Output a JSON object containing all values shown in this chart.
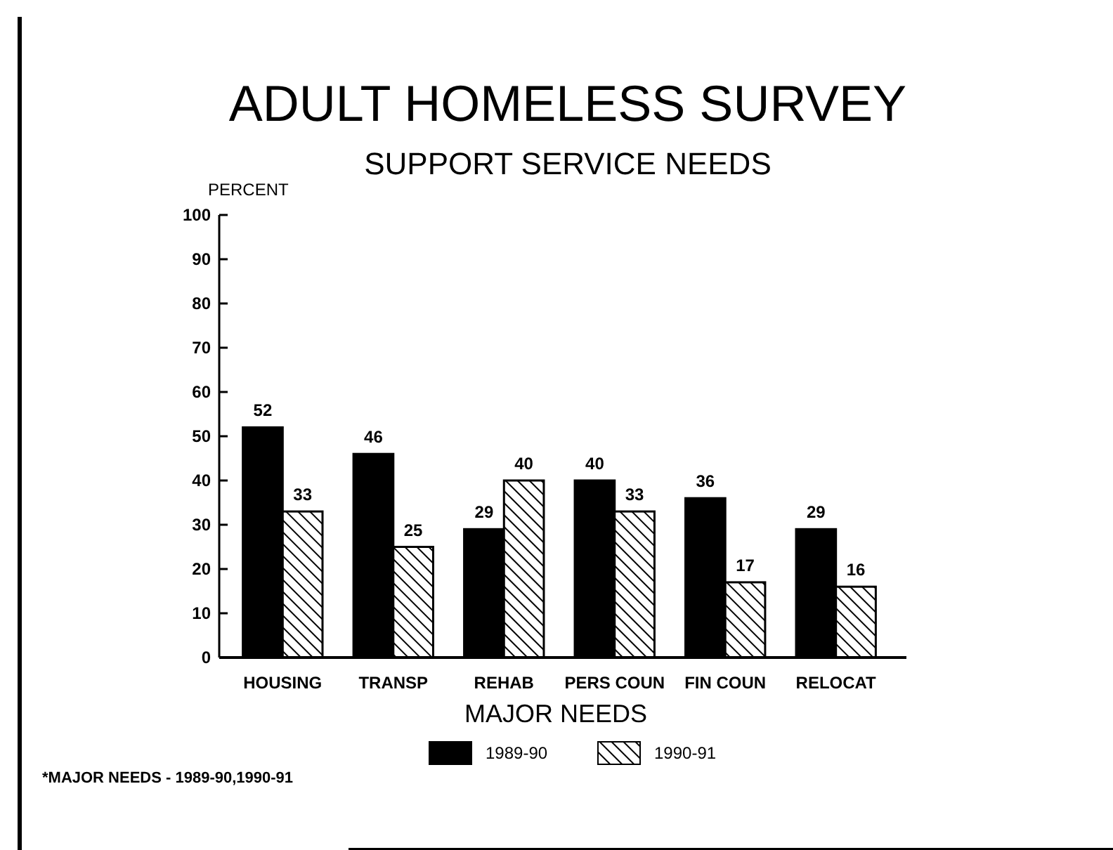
{
  "chart_data": {
    "type": "bar",
    "title": "ADULT HOMELESS SURVEY",
    "subtitle": "SUPPORT SERVICE NEEDS",
    "ylabel": "PERCENT",
    "xlabel": "MAJOR NEEDS",
    "categories": [
      "HOUSING",
      "TRANSP",
      "REHAB",
      "PERS COUN",
      "FIN COUN",
      "RELOCAT"
    ],
    "series": [
      {
        "name": "1989-90",
        "color": "#000000",
        "values": [
          52,
          46,
          29,
          40,
          36,
          29
        ]
      },
      {
        "name": "1990-91",
        "color": "#000000",
        "values": [
          33,
          25,
          40,
          33,
          17,
          16
        ]
      }
    ],
    "ylim": [
      0,
      100
    ],
    "yticks": [
      0,
      10,
      20,
      30,
      40,
      50,
      60,
      70,
      80,
      90,
      100
    ],
    "data_labels": true,
    "legend": "bottom",
    "annotations": [
      "*MAJOR NEEDS - 1989-90,1990-91"
    ]
  }
}
